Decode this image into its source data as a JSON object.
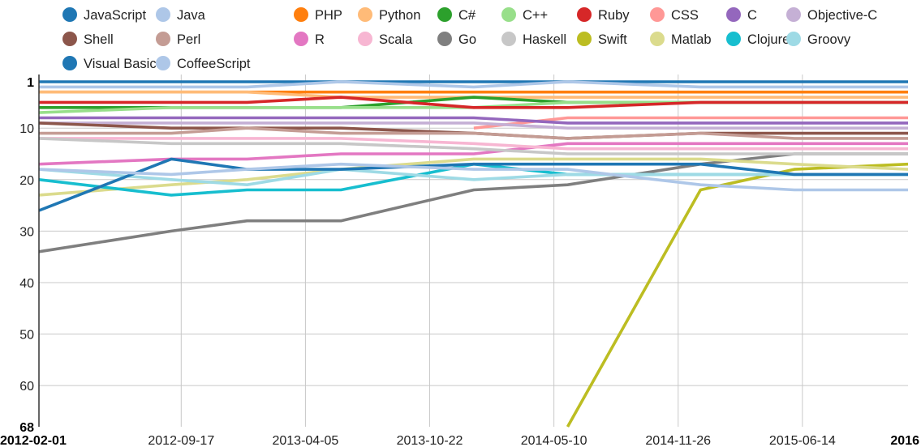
{
  "chart_data": {
    "type": "line",
    "title": "",
    "xlabel": "",
    "ylabel": "",
    "y_reversed": true,
    "ylim": [
      1,
      68
    ],
    "xlim": [
      "2012-02-01",
      "2015-12-01"
    ],
    "x_tick_labels": [
      {
        "date": "2012-02-01",
        "label": "2012-02-01",
        "bold": true
      },
      {
        "date": "2012-09-17",
        "label": "2012-09-17"
      },
      {
        "date": "2013-04-05",
        "label": "2013-04-05"
      },
      {
        "date": "2013-10-22",
        "label": "2013-10-22"
      },
      {
        "date": "2014-05-10",
        "label": "2014-05-10"
      },
      {
        "date": "2014-11-26",
        "label": "2014-11-26"
      },
      {
        "date": "2015-06-14",
        "label": "2015-06-14"
      },
      {
        "date": "2015-12-01",
        "label": "2016",
        "bold": true
      }
    ],
    "y_tick_labels": [
      {
        "value": 1,
        "label": "1",
        "bold": true
      },
      {
        "value": 10,
        "label": "10"
      },
      {
        "value": 20,
        "label": "20"
      },
      {
        "value": 30,
        "label": "30"
      },
      {
        "value": 40,
        "label": "40"
      },
      {
        "value": 50,
        "label": "50"
      },
      {
        "value": 60,
        "label": "60"
      },
      {
        "value": 68,
        "label": "68",
        "bold": true
      }
    ],
    "grid": true,
    "legend_position": "top",
    "x": [
      "2012-02-01",
      "2012-09-01",
      "2013-01-01",
      "2013-06-01",
      "2014-01-01",
      "2014-06-01",
      "2015-01-01",
      "2015-06-01",
      "2015-12-01"
    ],
    "series": [
      {
        "name": "JavaScript",
        "color": "#1f77b4",
        "values": [
          1,
          1,
          1,
          1,
          1,
          1,
          1,
          1,
          1
        ]
      },
      {
        "name": "Java",
        "color": "#aec7e8",
        "values": [
          2,
          2,
          2,
          1,
          2,
          1,
          2,
          2,
          2
        ]
      },
      {
        "name": "PHP",
        "color": "#ff7f0e",
        "values": [
          3,
          3,
          3,
          3,
          3,
          3,
          3,
          3,
          3
        ]
      },
      {
        "name": "Python",
        "color": "#ffbb78",
        "values": [
          3,
          3,
          3,
          4,
          4,
          4,
          4,
          4,
          4
        ]
      },
      {
        "name": "C#",
        "color": "#2ca02c",
        "values": [
          6,
          6,
          6,
          6,
          4,
          5,
          5,
          5,
          5
        ]
      },
      {
        "name": "C++",
        "color": "#98df8a",
        "values": [
          7,
          6,
          6,
          6,
          6,
          5,
          5,
          5,
          5
        ]
      },
      {
        "name": "Ruby",
        "color": "#d62728",
        "values": [
          5,
          5,
          5,
          4,
          6,
          6,
          5,
          5,
          5
        ]
      },
      {
        "name": "CSS",
        "color": "#ff9896",
        "values": [
          null,
          null,
          null,
          null,
          10,
          8,
          8,
          8,
          8
        ]
      },
      {
        "name": "C",
        "color": "#9467bd",
        "values": [
          8,
          8,
          8,
          8,
          8,
          9,
          9,
          9,
          9
        ]
      },
      {
        "name": "Objective-C",
        "color": "#c5b0d5",
        "values": [
          9,
          9,
          9,
          9,
          9,
          10,
          10,
          10,
          10
        ]
      },
      {
        "name": "Shell",
        "color": "#8c564b",
        "values": [
          9,
          10,
          10,
          10,
          11,
          12,
          11,
          11,
          11
        ]
      },
      {
        "name": "Perl",
        "color": "#c49c94",
        "values": [
          11,
          11,
          10,
          11,
          11,
          12,
          11,
          12,
          12
        ]
      },
      {
        "name": "R",
        "color": "#e377c2",
        "values": [
          17,
          16,
          16,
          15,
          15,
          13,
          13,
          13,
          13
        ]
      },
      {
        "name": "Scala",
        "color": "#f7b6d2",
        "values": [
          12,
          12,
          12,
          12,
          13,
          14,
          14,
          14,
          14
        ]
      },
      {
        "name": "Go",
        "color": "#7f7f7f",
        "values": [
          34,
          30,
          28,
          28,
          22,
          21,
          17,
          15,
          15
        ]
      },
      {
        "name": "Haskell",
        "color": "#c7c7c7",
        "values": [
          12,
          13,
          13,
          13,
          14,
          15,
          15,
          15,
          15
        ]
      },
      {
        "name": "Swift",
        "color": "#bcbd22",
        "values": [
          null,
          null,
          null,
          null,
          null,
          68,
          22,
          18,
          17
        ]
      },
      {
        "name": "Matlab",
        "color": "#dbdb8d",
        "values": [
          23,
          21,
          20,
          18,
          16,
          16,
          16,
          17,
          18
        ]
      },
      {
        "name": "Clojure",
        "color": "#17becf",
        "values": [
          20,
          23,
          22,
          22,
          17,
          19,
          19,
          19,
          19
        ]
      },
      {
        "name": "Groovy",
        "color": "#9edae5",
        "values": [
          18,
          20,
          21,
          18,
          20,
          19,
          19,
          19,
          19
        ]
      },
      {
        "name": "Visual Basic",
        "color": "#1f77b4",
        "values": [
          26,
          16,
          18,
          18,
          17,
          17,
          17,
          19,
          19
        ]
      },
      {
        "name": "CoffeeScript",
        "color": "#aec7e8",
        "values": [
          18,
          19,
          18,
          17,
          18,
          18,
          21,
          22,
          22
        ]
      }
    ]
  }
}
